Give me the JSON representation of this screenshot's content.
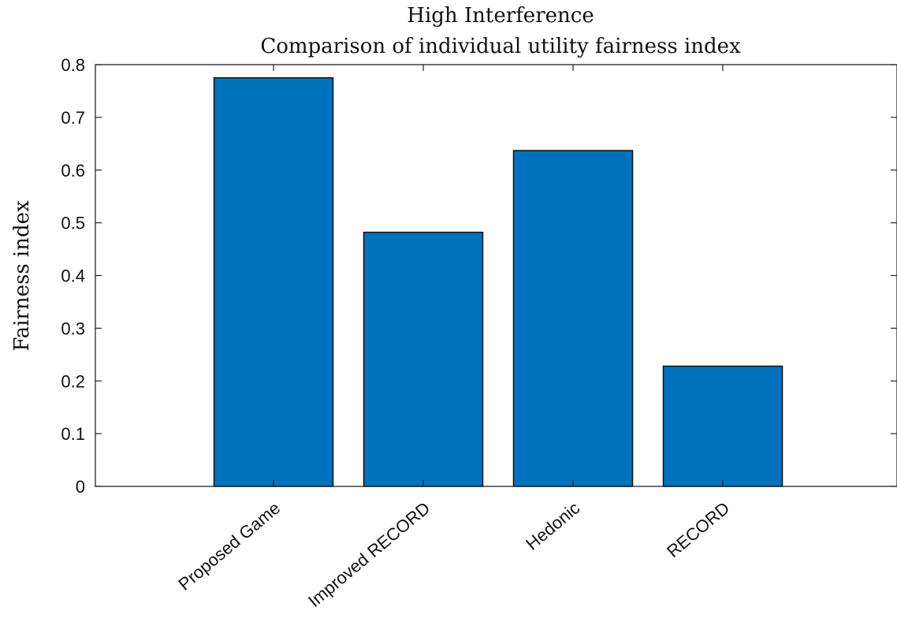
{
  "chart_data": {
    "type": "bar",
    "title": "High Interference",
    "subtitle": "Comparison of individual utility fairness index",
    "xlabel": "",
    "ylabel": "Fairness index",
    "categories": [
      "Proposed Game",
      "Improved RECORD",
      "Hedonic",
      "RECORD"
    ],
    "values": [
      0.775,
      0.482,
      0.637,
      0.228
    ],
    "ylim": [
      0,
      0.8
    ],
    "yticks": [
      "0",
      "0.1",
      "0.2",
      "0.3",
      "0.4",
      "0.5",
      "0.6",
      "0.7",
      "0.8"
    ],
    "bar_color": "#0072BD",
    "grid": false,
    "legend": "none"
  }
}
